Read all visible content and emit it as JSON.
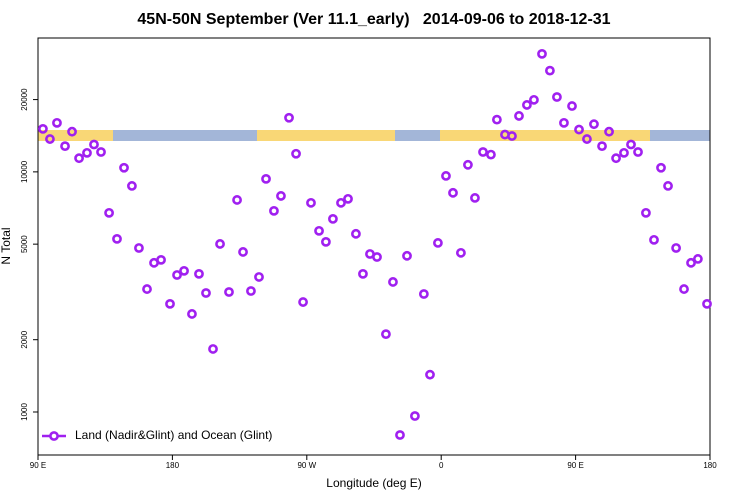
{
  "chart_data": {
    "type": "scatter",
    "title": "45N-50N September (Ver 11.1_early)   2014-09-06 to 2018-12-31",
    "x_label": "Longitude (deg E)",
    "y_label": "N Total",
    "xlim": [
      90,
      540
    ],
    "xticks": [
      {
        "value": 90,
        "label": "90 E"
      },
      180,
      {
        "value": 270,
        "label": "90 W"
      },
      {
        "value": 360,
        "label": "0"
      },
      {
        "value": 450,
        "label": "90 E"
      },
      {
        "value": 540,
        "label": "180"
      }
    ],
    "ylim": [
      662,
      36100
    ],
    "yscale": "log",
    "yticks": [
      1000,
      2000,
      5000,
      10000,
      20000
    ],
    "legend_position": "bottomleft",
    "series": [
      {
        "name": "Land (Nadir&Glint) and Ocean (Glint)",
        "color": "#a020f0",
        "x": [
          93.3,
          98.0,
          102.7,
          108.1,
          112.8,
          117.5,
          122.8,
          127.5,
          132.2,
          137.6,
          142.9,
          147.6,
          152.9,
          157.6,
          163.0,
          167.7,
          172.4,
          178.4,
          183.1,
          187.8,
          193.1,
          197.8,
          202.5,
          207.2,
          211.9,
          217.9,
          223.3,
          227.3,
          232.6,
          238.0,
          242.7,
          248.0,
          252.7,
          258.1,
          262.8,
          267.5,
          272.8,
          278.2,
          282.8,
          287.5,
          292.9,
          297.6,
          302.9,
          307.6,
          312.3,
          317.0,
          323.0,
          327.7,
          332.4,
          337.1,
          342.4,
          348.4,
          352.5,
          357.8,
          363.2,
          367.9,
          373.2,
          377.9,
          382.6,
          388.0,
          393.3,
          397.3,
          402.7,
          407.4,
          412.1,
          417.4,
          422.1,
          427.5,
          432.8,
          437.5,
          442.2,
          447.6,
          452.3,
          457.6,
          462.3,
          467.7,
          472.4,
          477.1,
          482.4,
          487.1,
          491.8,
          497.1,
          502.5,
          507.2,
          511.9,
          517.3,
          522.6,
          527.3,
          531.9,
          538.0
        ],
        "values": [
          15100,
          13700,
          16000,
          12800,
          14700,
          11400,
          12000,
          13000,
          12100,
          6750,
          5260,
          10400,
          8740,
          4820,
          3250,
          4180,
          4300,
          2820,
          3720,
          3870,
          2560,
          3760,
          3130,
          1830,
          5010,
          3160,
          7640,
          4640,
          3190,
          3650,
          9350,
          6880,
          7940,
          16800,
          11900,
          2870,
          7430,
          5680,
          5110,
          6370,
          7430,
          7720,
          5520,
          3760,
          4550,
          4420,
          2110,
          3480,
          802,
          4470,
          962,
          3100,
          1430,
          5060,
          9620,
          8180,
          4600,
          10700,
          7790,
          12100,
          11800,
          16500,
          14300,
          14100,
          17100,
          19000,
          19950,
          31000,
          26400,
          20500,
          16000,
          18800,
          15000,
          13700,
          15800,
          12800,
          14700,
          11400,
          12000,
          13000,
          12100,
          6750,
          5210,
          10400,
          8740,
          4820,
          3250,
          4180,
          4340,
          2820
        ]
      }
    ]
  }
}
